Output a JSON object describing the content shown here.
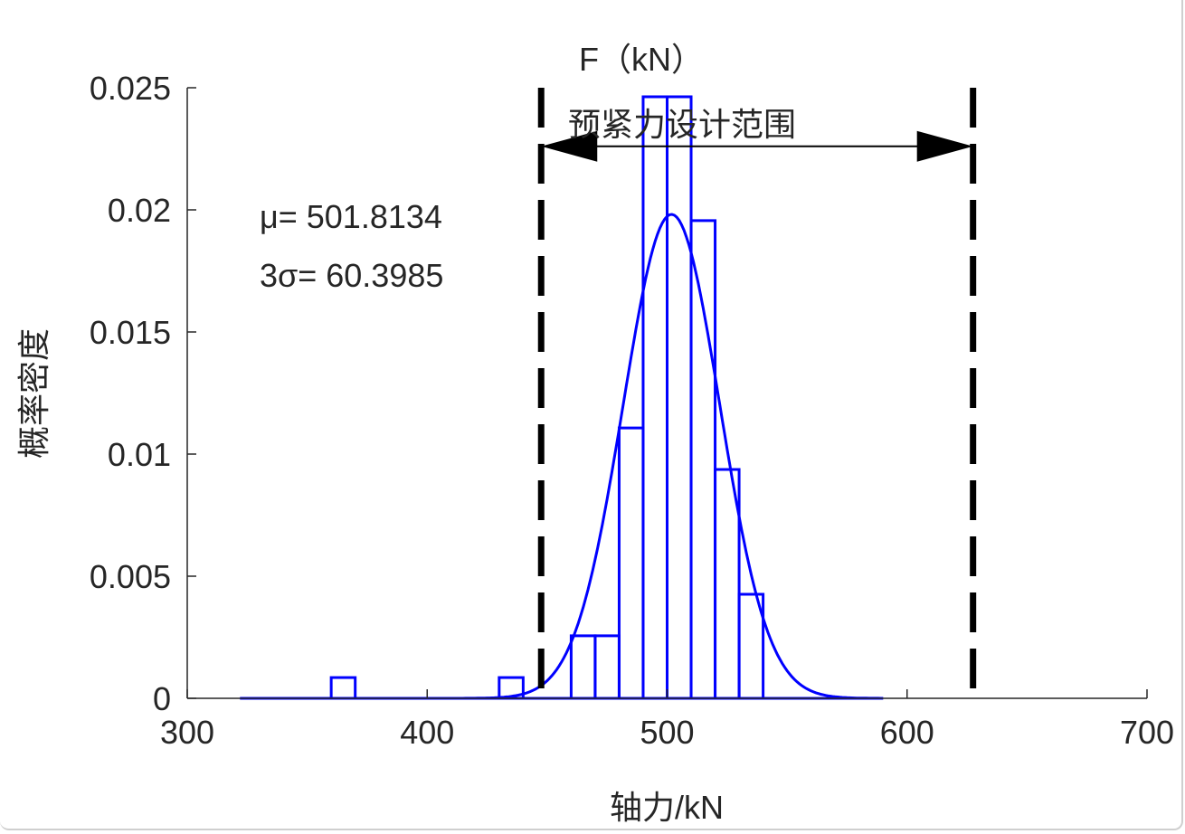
{
  "chart_data": {
    "type": "bar",
    "title": "F（kN）",
    "xlabel": "轴力/kN",
    "ylabel": "概率密度",
    "xlim": [
      300,
      700
    ],
    "ylim": [
      0,
      0.025
    ],
    "xticks": [
      "300",
      "400",
      "500",
      "600",
      "700"
    ],
    "yticks": [
      "0",
      "0.005",
      "0.01",
      "0.015",
      "0.02",
      "0.025"
    ],
    "grid": false,
    "histogram": {
      "bin_edges": [
        [
          360,
          370
        ],
        [
          430,
          440
        ],
        [
          460,
          470
        ],
        [
          470,
          480
        ],
        [
          480,
          490
        ],
        [
          490,
          500
        ],
        [
          500,
          510
        ],
        [
          510,
          520
        ],
        [
          520,
          530
        ],
        [
          530,
          540
        ]
      ],
      "density": [
        0.00085,
        0.00085,
        0.00256,
        0.00256,
        0.01107,
        0.02463,
        0.02463,
        0.01956,
        0.00937,
        0.00426
      ],
      "color": "#0000ff"
    },
    "normal_fit": {
      "mu": 501.8134,
      "sigma": 20.1328,
      "x_range": [
        322,
        590
      ],
      "color": "#0000ff"
    },
    "annotations": {
      "mu_text": "μ= 501.8134",
      "sigma_text": "3σ= 60.3985",
      "range_label": "预紧力设计范围",
      "range_lines": [
        447.5,
        627.5
      ],
      "arrow_y": 0.0226
    }
  }
}
